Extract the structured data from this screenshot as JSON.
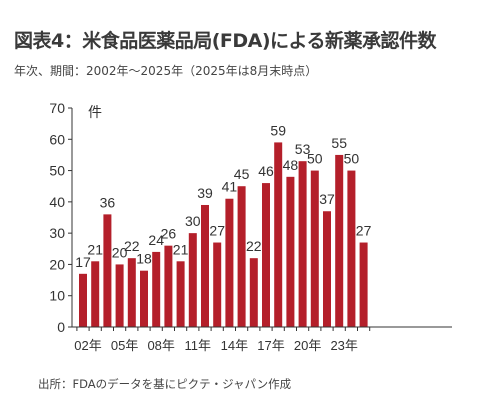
{
  "header": {
    "title": "図表4：米食品医薬品局(FDA)による新薬承認件数",
    "subtitle": "年次、期間：2002年～2025年（2025年は8月末時点）"
  },
  "footer": {
    "source": "出所：FDAのデータを基にピクテ・ジャパン作成"
  },
  "colors": {
    "bar": "#b41f2a",
    "axis": "#333333",
    "text": "#333333"
  },
  "chart_data": {
    "type": "bar",
    "ylabel": "件",
    "ylim": [
      0,
      70
    ],
    "yticks": [
      0,
      10,
      20,
      30,
      40,
      50,
      60,
      70
    ],
    "grid": false,
    "years": [
      2002,
      2003,
      2004,
      2005,
      2006,
      2007,
      2008,
      2009,
      2010,
      2011,
      2012,
      2013,
      2014,
      2015,
      2016,
      2017,
      2018,
      2019,
      2020,
      2021,
      2022,
      2023,
      2024,
      2025
    ],
    "categories": [
      "02年",
      "",
      "",
      "05年",
      "",
      "",
      "08年",
      "",
      "",
      "11年",
      "",
      "",
      "14年",
      "",
      "",
      "17年",
      "",
      "",
      "20年",
      "",
      "",
      "23年",
      "",
      ""
    ],
    "values": [
      17,
      21,
      36,
      20,
      22,
      18,
      24,
      26,
      21,
      30,
      39,
      27,
      41,
      45,
      22,
      46,
      59,
      48,
      53,
      50,
      37,
      55,
      50,
      27
    ]
  }
}
